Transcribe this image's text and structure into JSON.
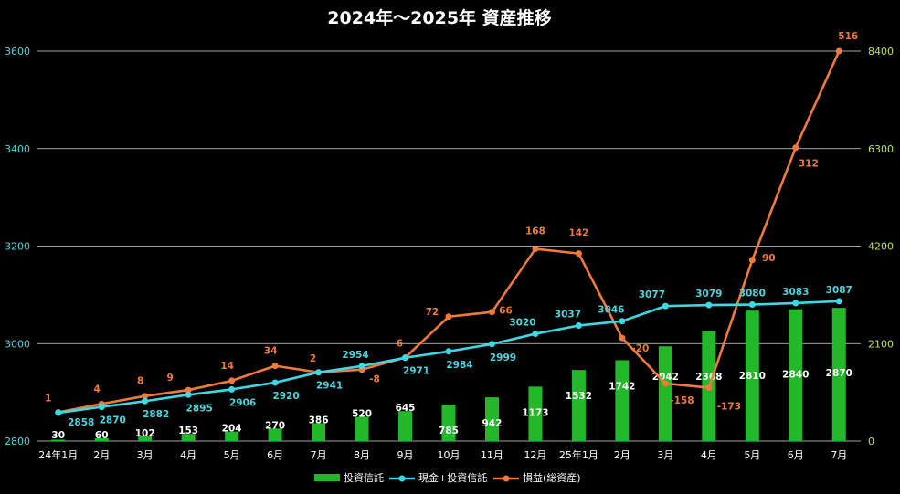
{
  "chart_data": {
    "type": "bar",
    "title": "2024年〜2025年 資産推移",
    "categories": [
      "24年1月",
      "2月",
      "3月",
      "4月",
      "5月",
      "6月",
      "7月",
      "8月",
      "9月",
      "10月",
      "11月",
      "12月",
      "25年1月",
      "2月",
      "3月",
      "4月",
      "5月",
      "6月",
      "7月"
    ],
    "y_left": {
      "ylim": [
        2800,
        3600
      ],
      "ticks": [
        2800,
        3000,
        3200,
        3400,
        3600
      ]
    },
    "y_right": {
      "ylim": [
        0,
        8400
      ],
      "ticks": [
        0,
        2100,
        4200,
        6300,
        8400
      ]
    },
    "grid": true,
    "legend_position": "bottom",
    "series": [
      {
        "name": "投資信託",
        "kind": "bar",
        "axis": "right",
        "color": "#22b82a",
        "values": [
          30,
          60,
          102,
          153,
          204,
          270,
          386,
          520,
          645,
          785,
          942,
          1173,
          1532,
          1742,
          2042,
          2368,
          2810,
          2840,
          2870
        ]
      },
      {
        "name": "現金+投資信託",
        "kind": "line",
        "axis": "left",
        "color": "#3dd8e6",
        "values": [
          2858,
          2870,
          2882,
          2895,
          2906,
          2920,
          2941,
          2954,
          2971,
          2984,
          2999,
          3020,
          3037,
          3046,
          3077,
          3079,
          3080,
          3083,
          3087
        ]
      },
      {
        "name": "損益(総資産)",
        "kind": "line",
        "axis": "right",
        "color": "#f07a3c",
        "values": [
          1,
          4,
          8,
          9,
          14,
          34,
          2,
          -8,
          6,
          72,
          66,
          168,
          142,
          -20,
          -158,
          -173,
          90,
          312,
          516
        ],
        "plot_values": [
          620,
          800,
          970,
          1100,
          1300,
          1620,
          1480,
          1540,
          1800,
          2680,
          2780,
          4140,
          4040,
          2220,
          1240,
          1150,
          3900,
          6320,
          8400
        ]
      }
    ]
  }
}
